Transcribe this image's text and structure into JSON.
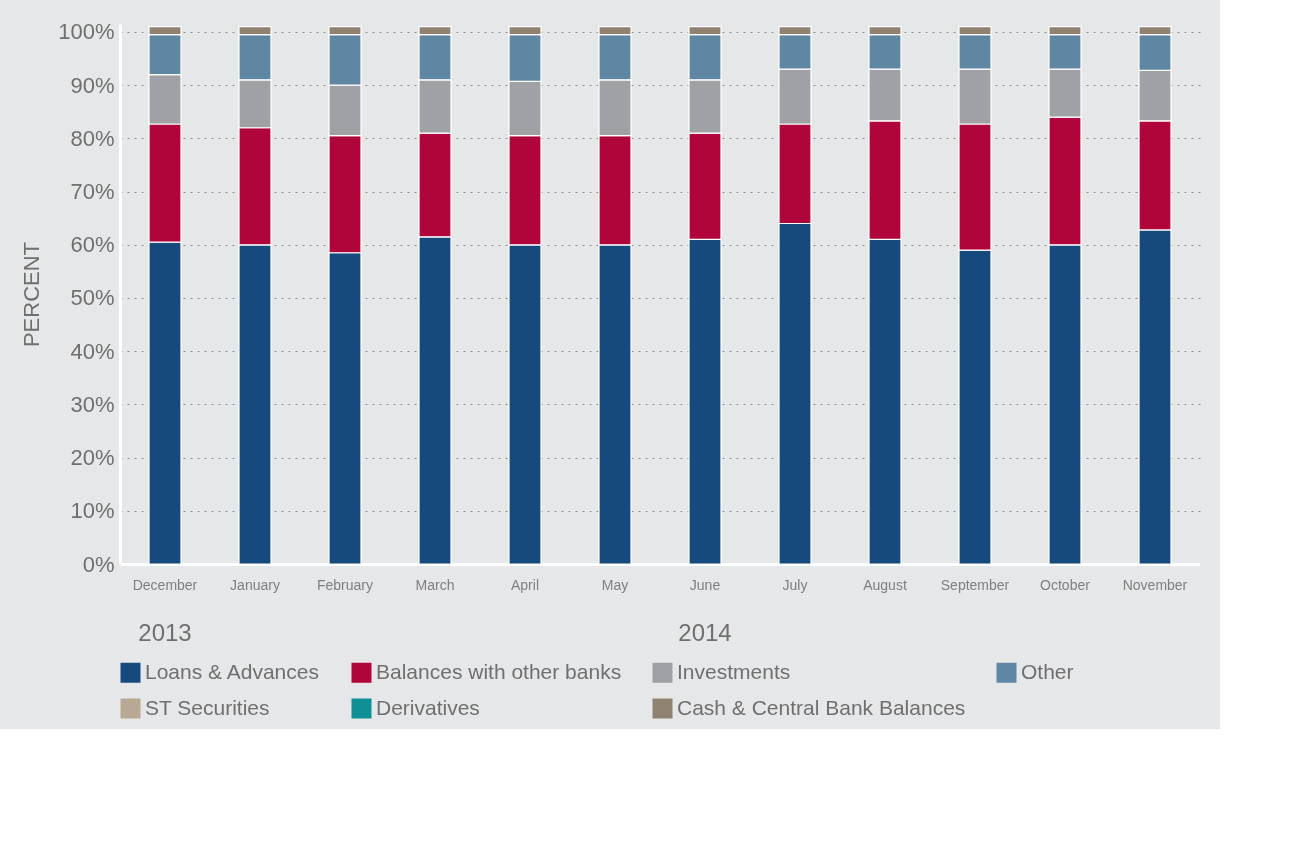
{
  "chart_data": {
    "type": "bar",
    "stacked": true,
    "ylabel": "PERCENT",
    "categories": [
      "December",
      "January",
      "February",
      "March",
      "April",
      "May",
      "June",
      "July",
      "August",
      "September",
      "October",
      "November"
    ],
    "series": [
      {
        "name": "Loans & Advances",
        "color": "#174a7c",
        "values": [
          60.5,
          60,
          58.5,
          61.5,
          60,
          60,
          61,
          64,
          61,
          59,
          60,
          62.8
        ]
      },
      {
        "name": "Balances with other banks",
        "color": "#b0053a",
        "values": [
          22.2,
          22,
          22,
          19.5,
          20.5,
          20.5,
          20,
          18.7,
          22.3,
          23.7,
          24,
          20.5
        ]
      },
      {
        "name": "Investments",
        "color": "#a0a1a5",
        "values": [
          9.3,
          9,
          9.5,
          10,
          10.2,
          10.5,
          10,
          10.3,
          9.7,
          10.3,
          9,
          9.5
        ]
      },
      {
        "name": "Other",
        "color": "#5f87a3",
        "values": [
          7.5,
          8.5,
          9.5,
          8.5,
          8.8,
          8.5,
          8.5,
          6.5,
          6.5,
          6.5,
          6.5,
          6.7
        ]
      },
      {
        "name": "ST Securities",
        "color": "#b8a994",
        "values": [
          0,
          0,
          0,
          0,
          0,
          0,
          0,
          0,
          0,
          0,
          0,
          0
        ]
      },
      {
        "name": "Derivatives",
        "color": "#0d8f93",
        "values": [
          0,
          0,
          0,
          0,
          0,
          0,
          0,
          0,
          0,
          0,
          0,
          0
        ]
      },
      {
        "name": "Cash & Central Bank Balances",
        "color": "#8f8270",
        "values": [
          1.5,
          1.5,
          1.5,
          1.5,
          1.5,
          1.5,
          1.5,
          1.5,
          1.5,
          1.5,
          1.5,
          1.5
        ]
      }
    ],
    "ylim": [
      0,
      101.5
    ],
    "yticks": [
      {
        "value": 0,
        "label": "0%"
      },
      {
        "value": 10,
        "label": "10%"
      },
      {
        "value": 20,
        "label": "20%"
      },
      {
        "value": 30,
        "label": "30%"
      },
      {
        "value": 40,
        "label": "40%"
      },
      {
        "value": 50,
        "label": "50%"
      },
      {
        "value": 60,
        "label": "60%"
      },
      {
        "value": 70,
        "label": "70%"
      },
      {
        "value": 80,
        "label": "80%"
      },
      {
        "value": 90,
        "label": "90%"
      },
      {
        "value": 100,
        "label": "100%"
      }
    ],
    "grid": "y",
    "legend": "bottom",
    "annotations": [
      "2013",
      "2014"
    ]
  }
}
